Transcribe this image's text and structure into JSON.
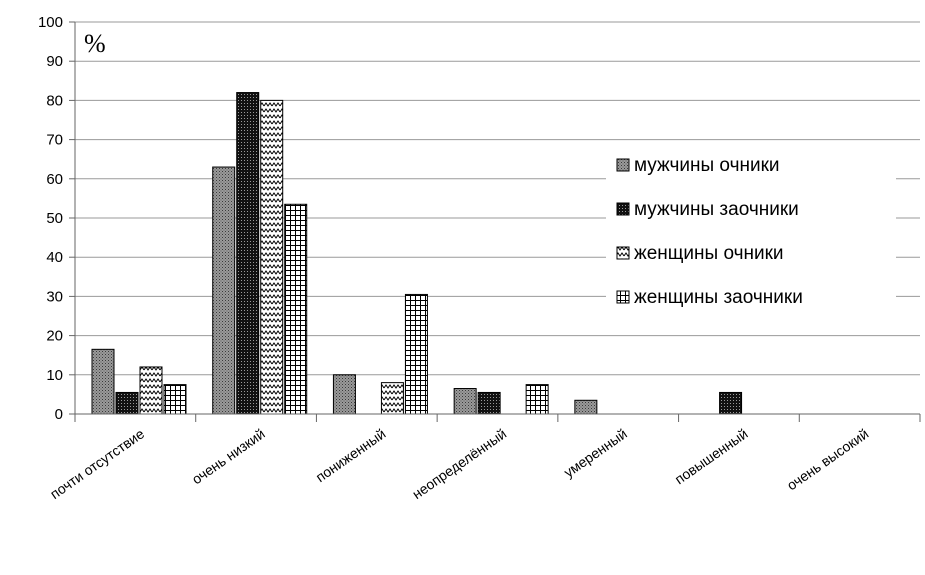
{
  "chart_data": {
    "type": "bar",
    "unit": "%",
    "categories": [
      "почти отсутствие",
      "очень низкий",
      "пониженный",
      "неопределённый",
      "умеренный",
      "повышенный",
      "очень высокий"
    ],
    "series": [
      {
        "name": "мужчины очники",
        "values": [
          16.5,
          63,
          10,
          6.5,
          3.5,
          0,
          0
        ],
        "pattern": "dots"
      },
      {
        "name": "мужчины заочники",
        "values": [
          5.5,
          82,
          0,
          5.5,
          0,
          5.5,
          0
        ],
        "pattern": "dense"
      },
      {
        "name": "женщины очники",
        "values": [
          12,
          80,
          8,
          0,
          0,
          0,
          0
        ],
        "pattern": "zigzag"
      },
      {
        "name": "женщины заочники",
        "values": [
          7.5,
          53.5,
          30.5,
          7.5,
          0,
          0,
          0
        ],
        "pattern": "grid"
      }
    ],
    "ylim": [
      0,
      100
    ],
    "yticks": [
      0,
      10,
      20,
      30,
      40,
      50,
      60,
      70,
      80,
      90,
      100
    ],
    "grid": true,
    "legend": "right"
  }
}
